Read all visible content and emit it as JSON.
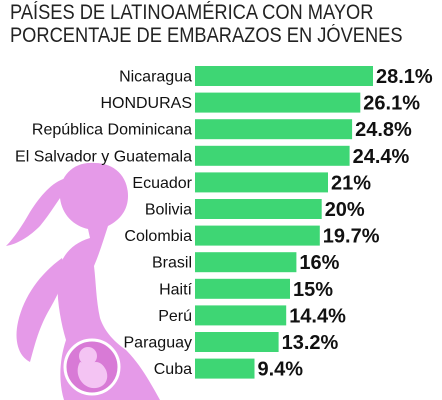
{
  "chart_data": {
    "type": "bar",
    "orientation": "horizontal",
    "title_lines": [
      "PAÍSES DE LATINOAMÉRICA CON MAYOR",
      "PORCENTAJE DE EMBARAZOS EN JÓVENES"
    ],
    "categories": [
      "Nicaragua",
      "HONDURAS",
      "República Dominicana",
      "El Salvador y Guatemala",
      "Ecuador",
      "Bolivia",
      "Colombia",
      "Brasil",
      "Haití",
      "Perú",
      "Paraguay",
      "Cuba"
    ],
    "values": [
      28.1,
      26.1,
      24.8,
      24.4,
      21,
      20,
      19.7,
      16,
      15,
      14.4,
      13.2,
      9.4
    ],
    "value_labels": [
      "28.1%",
      "26.1%",
      "24.8%",
      "24.4%",
      "21%",
      "20%",
      "19.7%",
      "16%",
      "15%",
      "14.4%",
      "13.2%",
      "9.4%"
    ],
    "xlim": [
      0,
      28.1
    ],
    "grid": false,
    "legend": false,
    "colors": {
      "bar": "#3ed674",
      "illustration": "#e59ae8",
      "fetus": "#d87ad6",
      "text": "#111111",
      "title": "#222222"
    },
    "decoration_icon": "pregnant-woman-silhouette-icon"
  }
}
